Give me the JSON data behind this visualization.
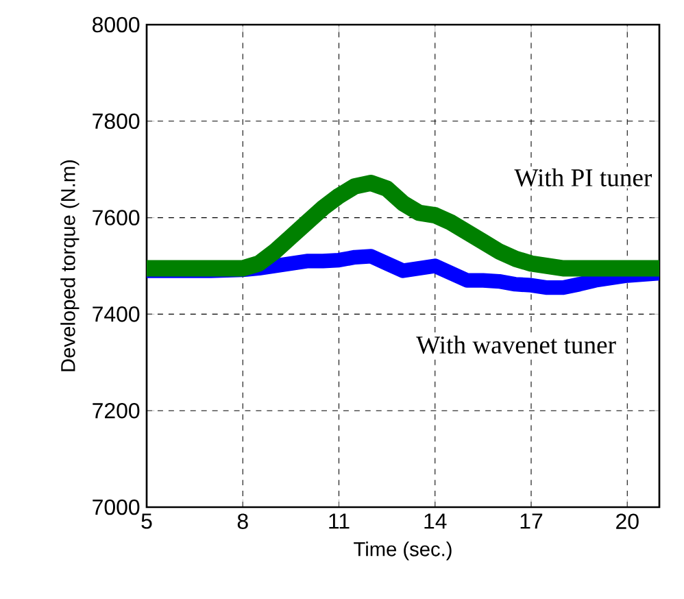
{
  "chart_data": {
    "type": "line",
    "xlabel": "Time (sec.)",
    "ylabel": "Developed torque (N.m)",
    "xlim": [
      5,
      21
    ],
    "ylim": [
      7000,
      8000
    ],
    "xticks": [
      5,
      8,
      11,
      14,
      17,
      20
    ],
    "yticks": [
      7000,
      7200,
      7400,
      7600,
      7800,
      8000
    ],
    "grid": true,
    "line_style": "solid",
    "marker": "none",
    "x": [
      5,
      6,
      7,
      8,
      8.5,
      9,
      9.5,
      10,
      10.5,
      11,
      11.5,
      12,
      12.5,
      13,
      13.5,
      14,
      14.5,
      15,
      15.5,
      16,
      16.5,
      17,
      17.5,
      18,
      18.5,
      19,
      20,
      21
    ],
    "series": [
      {
        "name": "With wavenet tuner",
        "color": "#0000ff",
        "values": [
          7490,
          7490,
          7490,
          7492,
          7495,
          7500,
          7505,
          7510,
          7510,
          7512,
          7518,
          7520,
          7505,
          7490,
          7495,
          7500,
          7485,
          7470,
          7470,
          7468,
          7462,
          7460,
          7455,
          7455,
          7462,
          7470,
          7480,
          7485
        ]
      },
      {
        "name": "With PI tuner",
        "color": "#008000",
        "values": [
          7495,
          7495,
          7495,
          7495,
          7505,
          7530,
          7560,
          7590,
          7620,
          7645,
          7665,
          7672,
          7660,
          7630,
          7610,
          7605,
          7590,
          7570,
          7550,
          7530,
          7515,
          7505,
          7500,
          7495,
          7495,
          7495,
          7495,
          7495
        ]
      }
    ]
  }
}
